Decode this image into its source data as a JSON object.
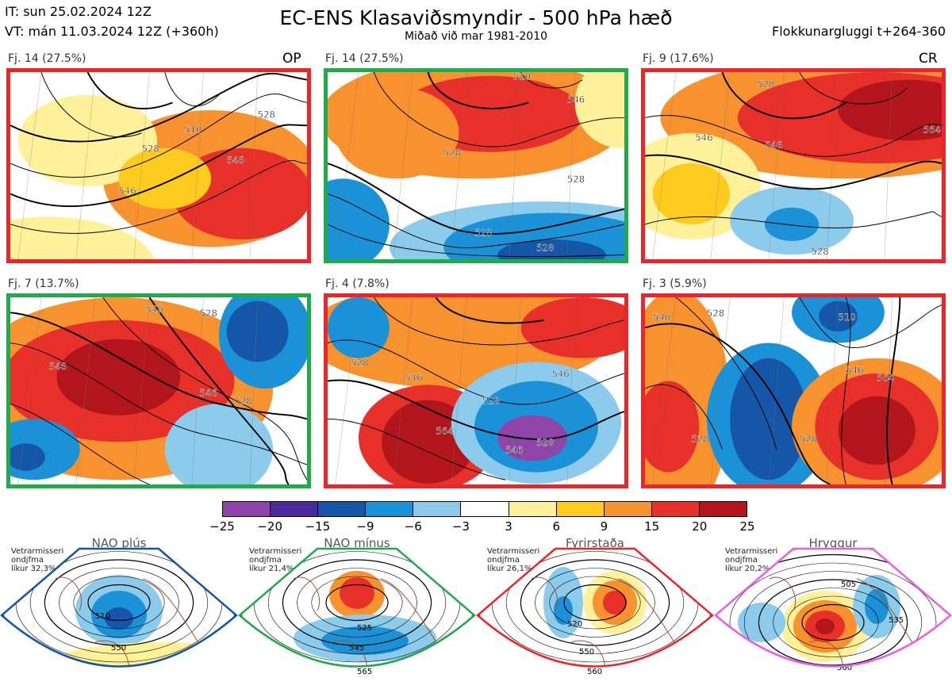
{
  "header": {
    "it": "IT: sun 25.02.2024 12Z",
    "vt": "VT: mán 11.03.2024 12Z  (+360h)",
    "title": "EC-ENS Klasaviðsmyndir - 500 hPa hæð",
    "subtitle": "Miðað við mar 1981-2010",
    "window": "Flokkunargluggi t+264-360"
  },
  "clusters": [
    {
      "label": "Fj. 14 (27.5%)",
      "tag": "OP",
      "frame_color": "#e8262b",
      "isolines": [
        "510",
        "528",
        "546",
        "528",
        "546"
      ]
    },
    {
      "label": "Fj. 14 (27.5%)",
      "tag": "",
      "frame_color": "#1faa4b",
      "isolines": [
        "510",
        "528",
        "546",
        "528",
        "528",
        "528"
      ]
    },
    {
      "label": "Fj. 9 (17.6%)",
      "tag": "CR",
      "frame_color": "#e8262b",
      "isolines": [
        "546",
        "528",
        "546",
        "528",
        "564"
      ]
    },
    {
      "label": "Fj. 7 (13.7%)",
      "tag": "",
      "frame_color": "#1faa4b",
      "isolines": [
        "546",
        "528",
        "546",
        "546",
        "528"
      ]
    },
    {
      "label": "Fj. 4 (7.8%)",
      "tag": "",
      "frame_color": "#e8262b",
      "isolines": [
        "528",
        "546",
        "528",
        "564",
        "528",
        "546",
        "546"
      ]
    },
    {
      "label": "Fj. 3 (5.9%)",
      "tag": "",
      "frame_color": "#e8262b",
      "isolines": [
        "546",
        "528",
        "528",
        "510",
        "546",
        "564",
        "528"
      ]
    }
  ],
  "colorbar": {
    "colors": [
      "#8e44a8",
      "#4a2a9e",
      "#1556a8",
      "#1b92d8",
      "#8ccbeb",
      "#ffffff",
      "#fff09a",
      "#fdcb1d",
      "#f7922e",
      "#e8302b",
      "#b2151c"
    ],
    "ticks": [
      "−25",
      "−20",
      "−15",
      "−9",
      "−6",
      "−3",
      "3",
      "6",
      "9",
      "15",
      "20",
      "25"
    ]
  },
  "regimes": [
    {
      "name": "NAO plús",
      "info": "Vetrarmisseri\nondjfma\nlíkur 32,3%",
      "color": "#1555a5",
      "isolines": [
        "510",
        "550"
      ]
    },
    {
      "name": "NAO mínus",
      "info": "Vetrarmisseri\nondjfma\nlíkur 21,4%",
      "color": "#22a84a",
      "isolines": [
        "525",
        "545",
        "565"
      ]
    },
    {
      "name": "Fyrirstaða",
      "info": "Vetrarmisseri\nondjfma\nlíkur 26,1%",
      "color": "#e8262b",
      "isolines": [
        "520",
        "550",
        "560"
      ]
    },
    {
      "name": "Hryggur",
      "info": "Vetrarmisseri\nondjfma\nlíkur 20,2%",
      "color": "#e85ee8",
      "isolines": [
        "505",
        "535",
        "560"
      ]
    }
  ]
}
